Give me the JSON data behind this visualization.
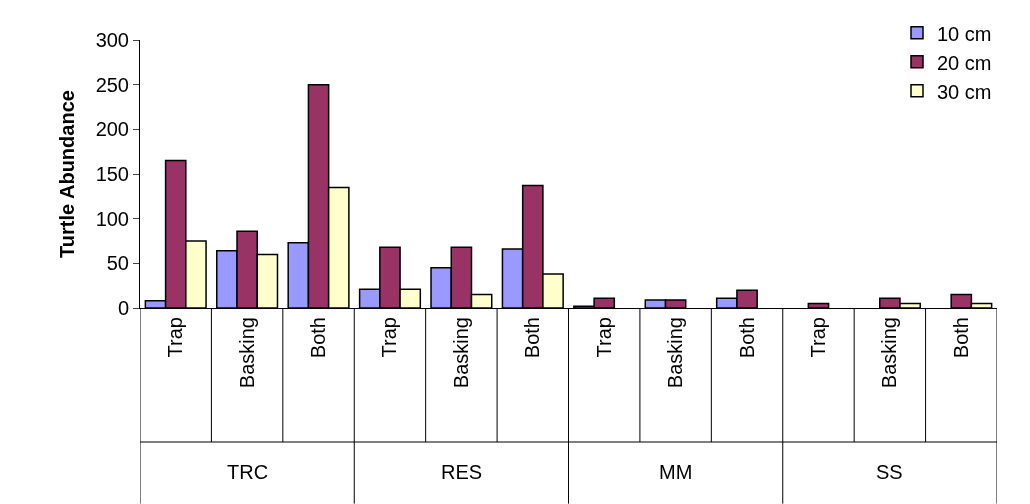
{
  "chart_data": {
    "type": "bar",
    "ylabel": "Turtle Abundance",
    "categories": [
      "Trap",
      "Basking",
      "Both",
      "Trap",
      "Basking",
      "Both",
      "Trap",
      "Basking",
      "Both",
      "Trap",
      "Basking",
      "Both"
    ],
    "series": [
      {
        "name": "10 cm",
        "color": "#9999ff",
        "values": [
          8,
          64,
          73,
          21,
          45,
          66,
          2,
          9,
          11,
          null,
          null,
          null
        ]
      },
      {
        "name": "20 cm",
        "color": "#993366",
        "values": [
          165,
          86,
          250,
          68,
          68,
          137,
          11,
          9,
          20,
          5,
          11,
          15
        ]
      },
      {
        "name": "30 cm",
        "color": "#ffffcc",
        "values": [
          75,
          60,
          135,
          21,
          15,
          38,
          null,
          null,
          null,
          null,
          5,
          5
        ]
      }
    ],
    "annotations": [
      "TRC",
      "RES",
      "MM",
      "SS"
    ],
    "ylim": [
      0,
      300
    ],
    "yticks": [
      0,
      50,
      100,
      150,
      200,
      250,
      300
    ],
    "legend": "top right"
  }
}
